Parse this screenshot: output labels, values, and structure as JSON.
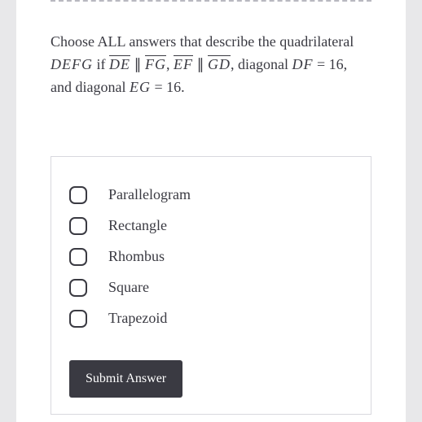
{
  "question": {
    "prefix": "Choose ALL answers that describe the quadrilateral ",
    "quad": "DEFG",
    "if_text": " if ",
    "seg1": "DE",
    "parallel1": " ∥ ",
    "seg2": "FG",
    "comma1": ", ",
    "seg3": "EF",
    "parallel2": " ∥ ",
    "seg4": "GD",
    "diag_text1": ", diagonal ",
    "diag1": "DF",
    "eq1": " = 16",
    "and_text": ", and diagonal ",
    "diag2": "EG",
    "eq2": " = 16",
    "period": "."
  },
  "options": [
    {
      "label": "Parallelogram"
    },
    {
      "label": "Rectangle"
    },
    {
      "label": "Rhombus"
    },
    {
      "label": "Square"
    },
    {
      "label": "Trapezoid"
    }
  ],
  "submit_label": "Submit Answer",
  "colors": {
    "page_bg": "#ffffff",
    "body_bg": "#e8e8ea",
    "text": "#3a3a42",
    "border": "#d8d8de",
    "divider": "#b8b8c0",
    "button_bg": "#3a3a42",
    "button_text": "#ffffff"
  }
}
